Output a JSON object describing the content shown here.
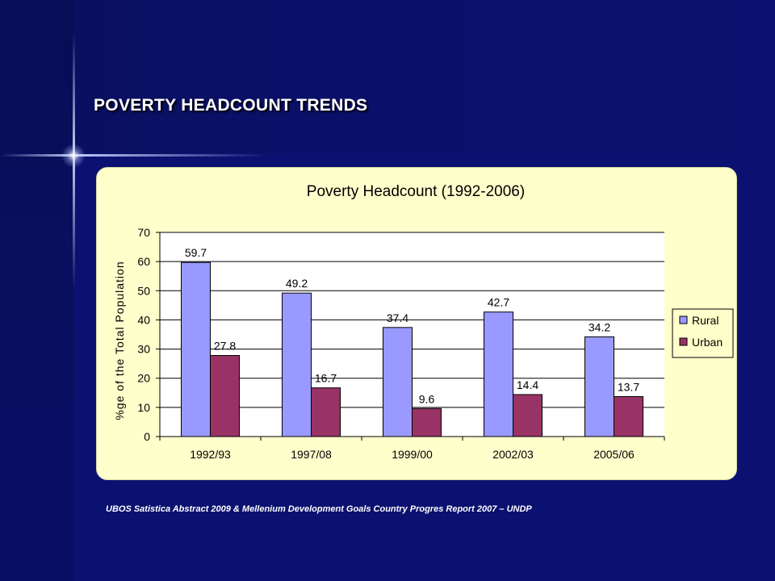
{
  "slide": {
    "title": "POVERTY HEADCOUNT TRENDS",
    "source": "UBOS Satistica Abstract 2009 & Mellenium Development Goals Country Progres Report 2007 – UNDP"
  },
  "chart_data": {
    "type": "bar",
    "title": "Poverty Headcount (1992-2006)",
    "xlabel": "",
    "ylabel": "%ge of the Total Population",
    "categories": [
      "1992/93",
      "1997/08",
      "1999/00",
      "2002/03",
      "2005/06"
    ],
    "series": [
      {
        "name": "Rural",
        "values": [
          59.7,
          49.2,
          37.4,
          42.7,
          34.2
        ],
        "labels": [
          "59.7",
          "49.2",
          "37.4",
          "42.7",
          "34.2"
        ],
        "color": "#9999ff"
      },
      {
        "name": "Urban",
        "values": [
          27.8,
          16.7,
          9.6,
          14.4,
          13.7
        ],
        "labels": [
          "27.8",
          "16.7",
          "9.6",
          "14.4",
          "13.7"
        ],
        "color": "#993366"
      }
    ],
    "ylim": [
      0,
      70
    ],
    "yticks": [
      0,
      10,
      20,
      30,
      40,
      50,
      60,
      70
    ],
    "grid": true,
    "legend": "right",
    "colors": {
      "panel_background": "#ffffcc",
      "plot_background": "#ffffff",
      "slide_background": "#0b1170"
    }
  }
}
